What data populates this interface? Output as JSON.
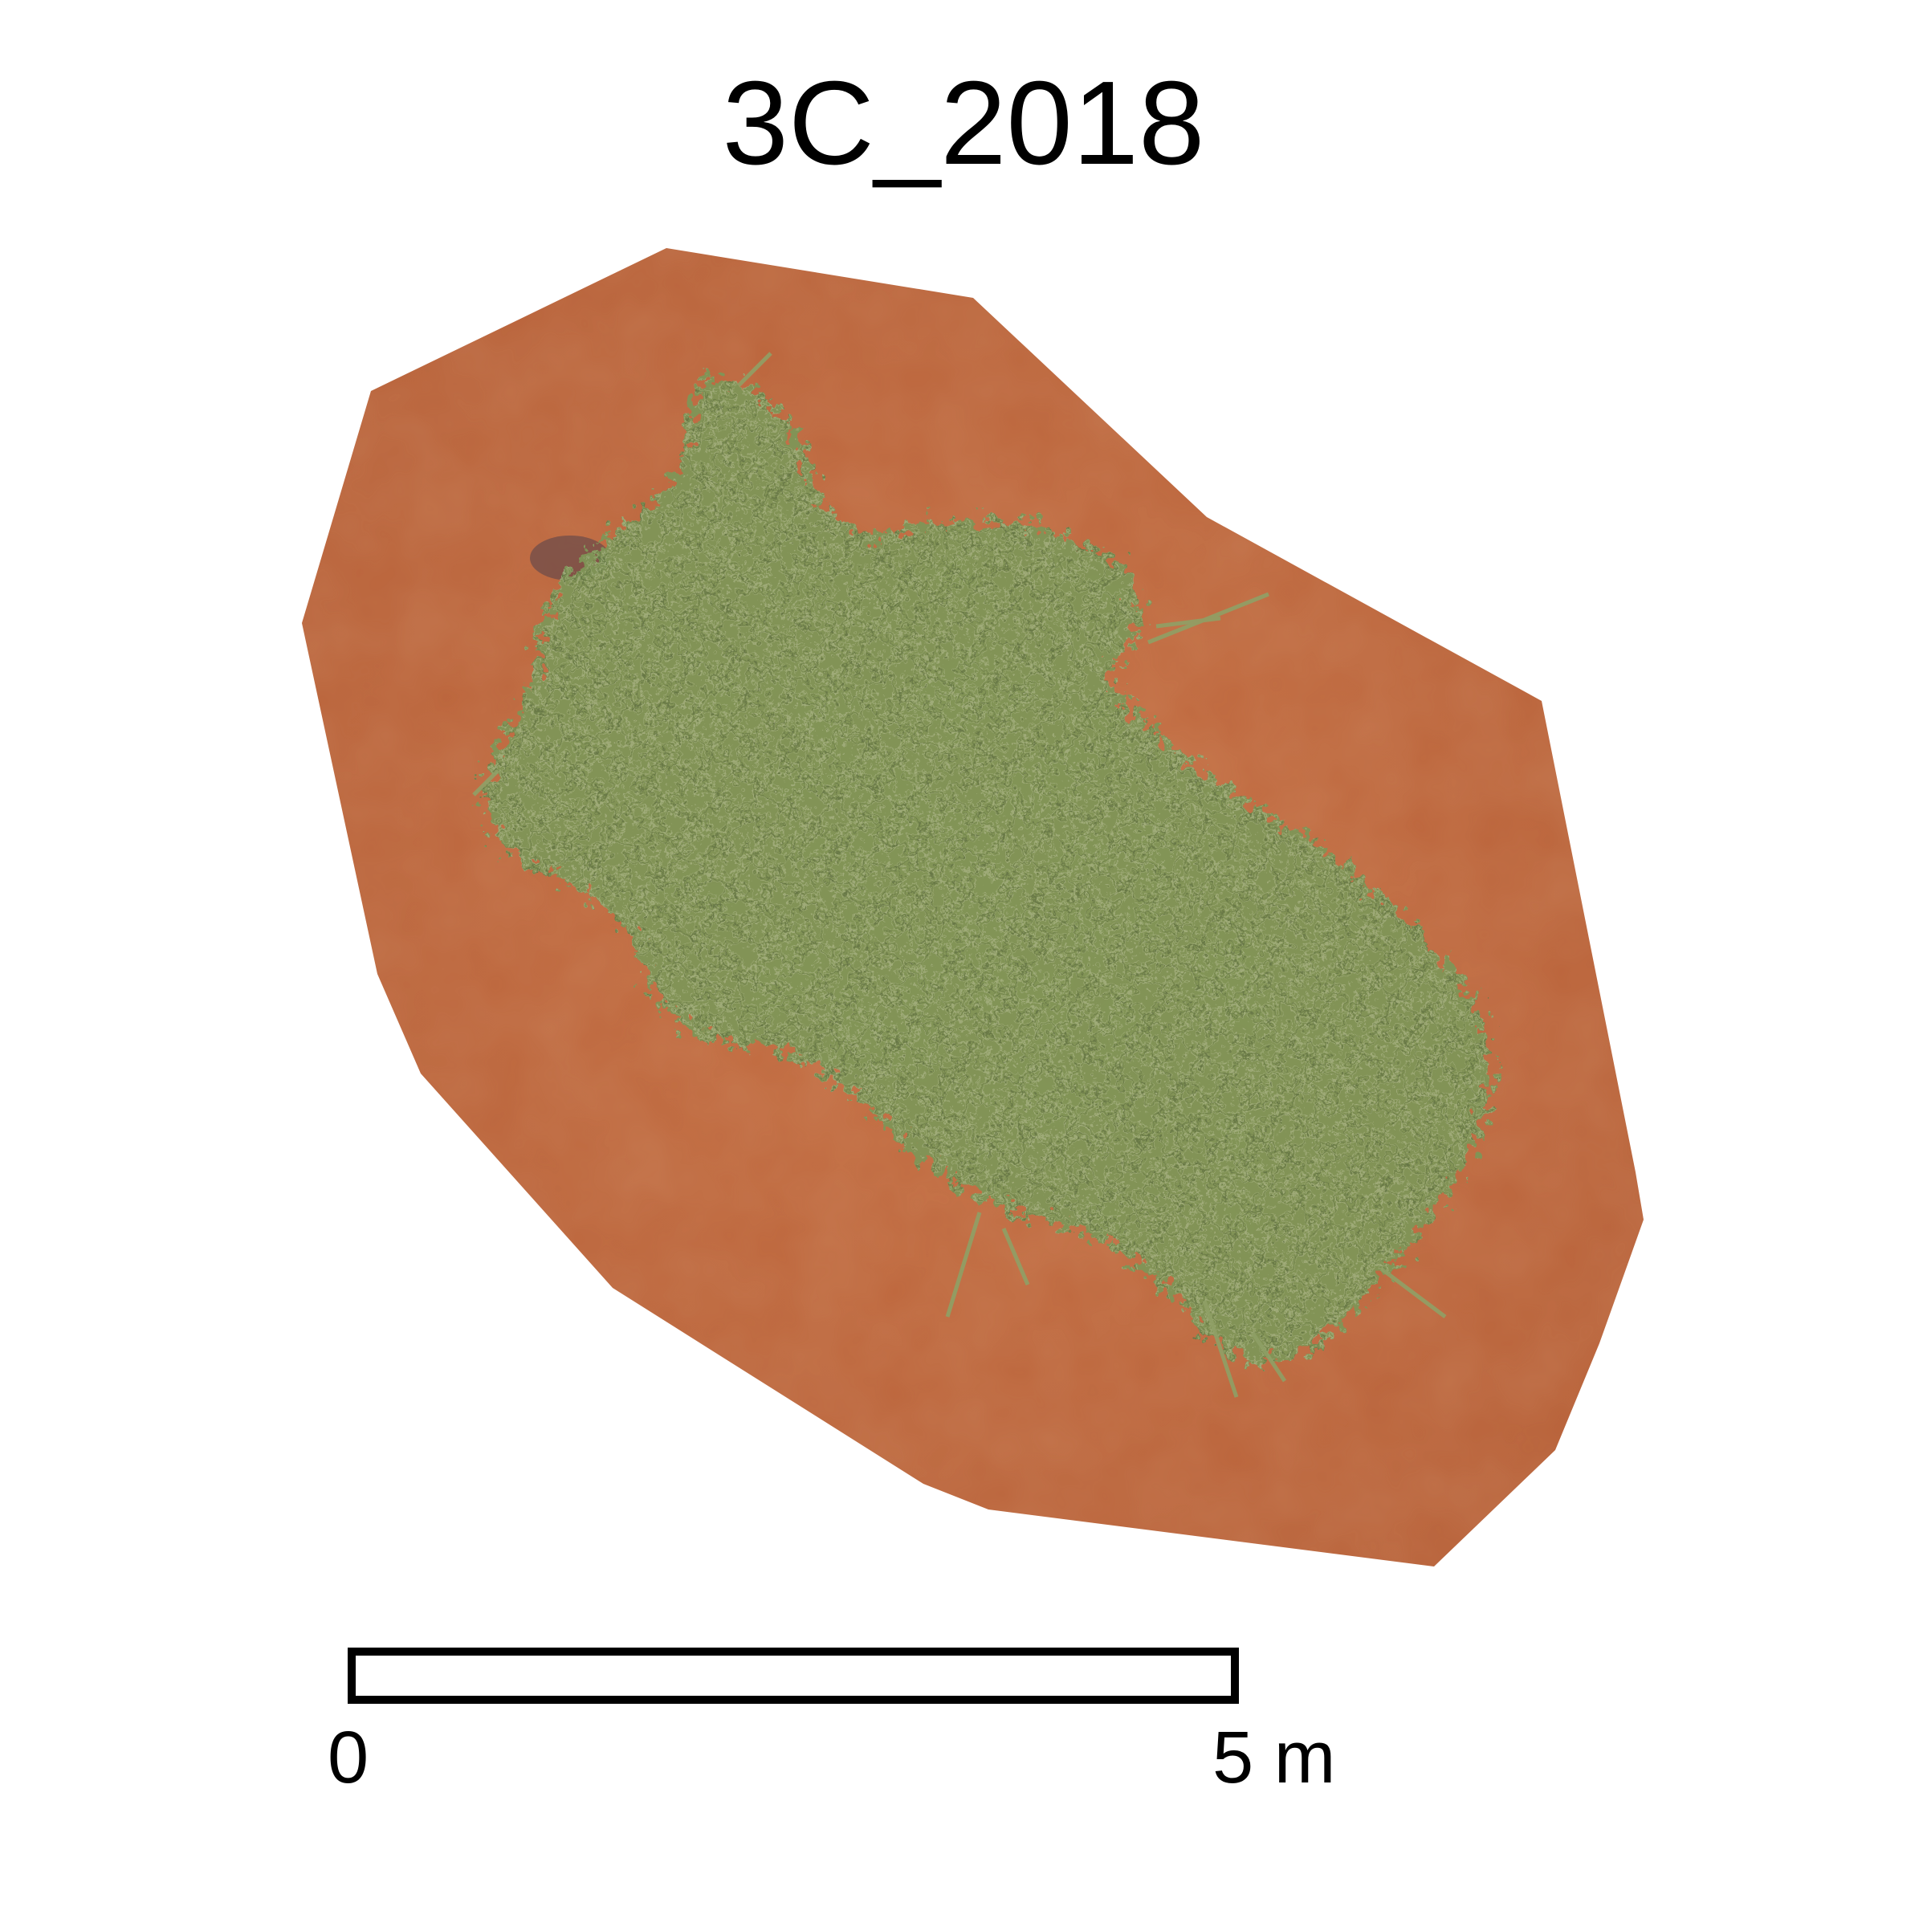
{
  "title": "3C_2018",
  "scalebar": {
    "start_label": "0",
    "end_label": "5 m"
  },
  "colors": {
    "sand": "#c06a3e",
    "vegetation": "#7e9557",
    "scalebar_fill": "#ffffff",
    "scalebar_stroke": "#000000"
  }
}
